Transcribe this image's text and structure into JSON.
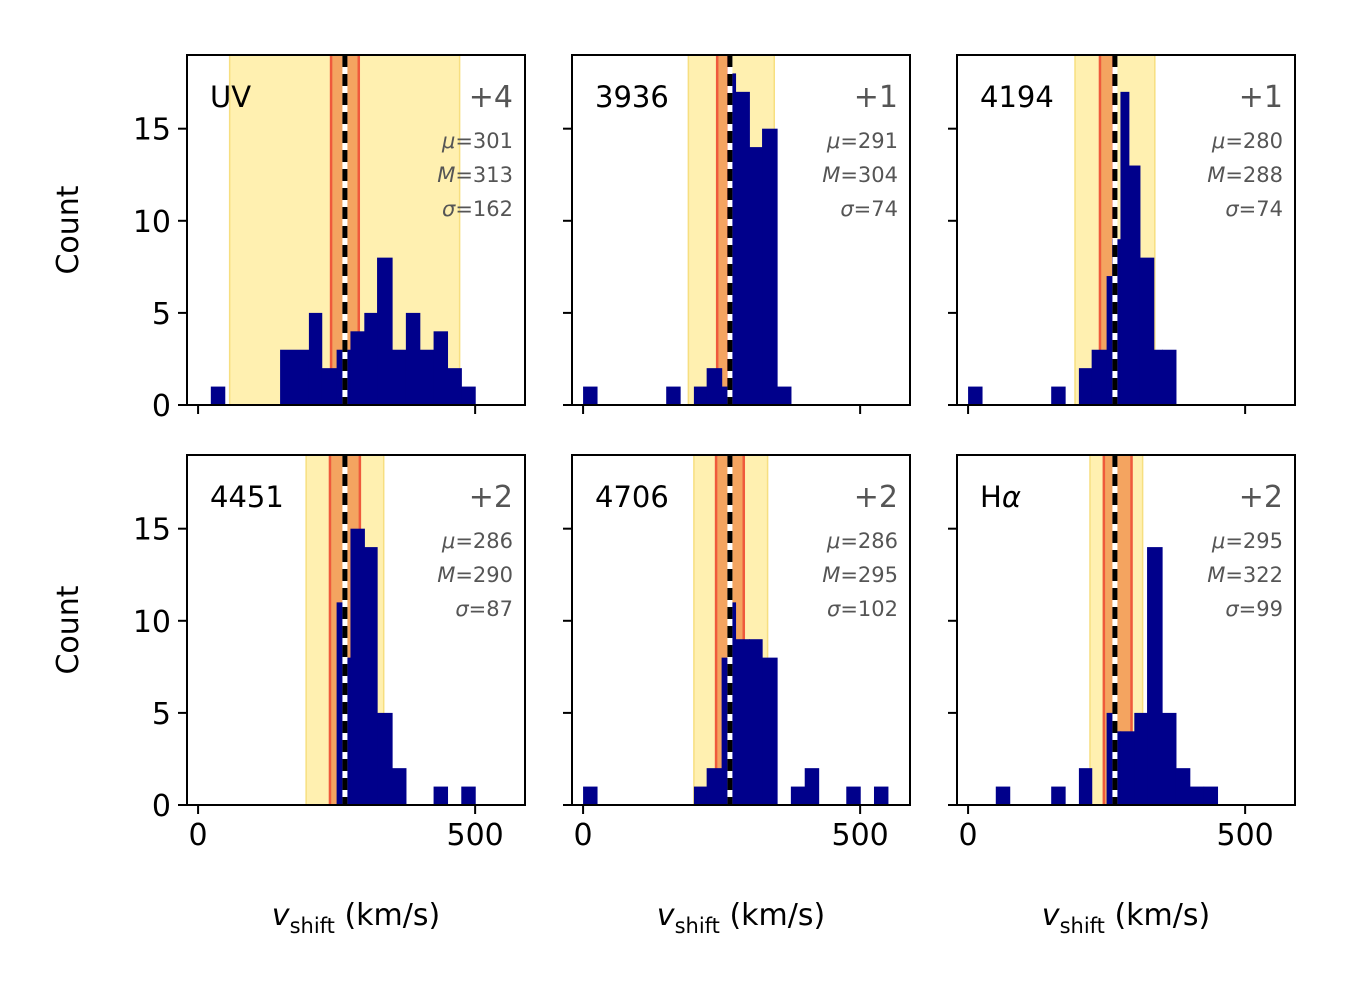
{
  "chart_data": {
    "type": "histogram-grid",
    "x_axis_label": "v_shift (km/s)",
    "x_axis_label_main": "v",
    "x_axis_label_sub": "shift",
    "x_axis_label_unit": " (km/s)",
    "y_axis_label": "Count",
    "x_range": [
      -20,
      590
    ],
    "y_range": [
      0,
      19
    ],
    "x_ticks": [
      0,
      500
    ],
    "y_ticks": [
      0,
      5,
      10,
      15
    ],
    "reference_line": 265,
    "bar_color": "#00008b",
    "band_inner_color": "#f4a460",
    "band_inner_edge_color": "#ef5a3c",
    "band_outer_color": "#fff0b0",
    "band_outer_edge_color": "#f7df80",
    "panels": [
      {
        "name": "UV",
        "name_main": "UV",
        "name_greek": "",
        "offset": "+4",
        "stats": {
          "mu": "301",
          "M": "313",
          "sigma": "162"
        },
        "band_outer": [
          57,
          472
        ],
        "band_inner": [
          240,
          290
        ],
        "bins": [
          {
            "x0": 23,
            "x1": 48,
            "count": 1
          },
          {
            "x0": 148,
            "x1": 200,
            "count": 3
          },
          {
            "x0": 200,
            "x1": 223,
            "count": 5
          },
          {
            "x0": 223,
            "x1": 250,
            "count": 2
          },
          {
            "x0": 250,
            "x1": 275,
            "count": 3
          },
          {
            "x0": 275,
            "x1": 300,
            "count": 4
          },
          {
            "x0": 300,
            "x1": 323,
            "count": 5
          },
          {
            "x0": 323,
            "x1": 350,
            "count": 8
          },
          {
            "x0": 350,
            "x1": 375,
            "count": 3
          },
          {
            "x0": 375,
            "x1": 400,
            "count": 5
          },
          {
            "x0": 400,
            "x1": 425,
            "count": 3
          },
          {
            "x0": 425,
            "x1": 450,
            "count": 4
          },
          {
            "x0": 450,
            "x1": 475,
            "count": 2
          },
          {
            "x0": 475,
            "x1": 500,
            "count": 1
          }
        ]
      },
      {
        "name": "3936",
        "name_main": "3936",
        "name_greek": "",
        "offset": "+1",
        "stats": {
          "mu": "291",
          "M": "304",
          "sigma": "74"
        },
        "band_outer": [
          190,
          345
        ],
        "band_inner": [
          242,
          262
        ],
        "bins": [
          {
            "x0": 0,
            "x1": 25,
            "count": 1
          },
          {
            "x0": 150,
            "x1": 175,
            "count": 1
          },
          {
            "x0": 200,
            "x1": 223,
            "count": 1
          },
          {
            "x0": 223,
            "x1": 250,
            "count": 2
          },
          {
            "x0": 250,
            "x1": 265,
            "count": 1
          },
          {
            "x0": 265,
            "x1": 275,
            "count": 18
          },
          {
            "x0": 275,
            "x1": 300,
            "count": 17
          },
          {
            "x0": 300,
            "x1": 323,
            "count": 14
          },
          {
            "x0": 323,
            "x1": 350,
            "count": 15
          },
          {
            "x0": 350,
            "x1": 375,
            "count": 1
          }
        ]
      },
      {
        "name": "4194",
        "name_main": "4194",
        "name_greek": "",
        "offset": "+1",
        "stats": {
          "mu": "280",
          "M": "288",
          "sigma": "74"
        },
        "band_outer": [
          193,
          337
        ],
        "band_inner": [
          238,
          262
        ],
        "bins": [
          {
            "x0": 0,
            "x1": 25,
            "count": 1
          },
          {
            "x0": 150,
            "x1": 175,
            "count": 1
          },
          {
            "x0": 200,
            "x1": 223,
            "count": 2
          },
          {
            "x0": 223,
            "x1": 250,
            "count": 3
          },
          {
            "x0": 250,
            "x1": 260,
            "count": 7
          },
          {
            "x0": 260,
            "x1": 275,
            "count": 9
          },
          {
            "x0": 275,
            "x1": 290,
            "count": 17
          },
          {
            "x0": 290,
            "x1": 310,
            "count": 13
          },
          {
            "x0": 310,
            "x1": 335,
            "count": 8
          },
          {
            "x0": 335,
            "x1": 350,
            "count": 3
          },
          {
            "x0": 350,
            "x1": 375,
            "count": 3
          }
        ]
      },
      {
        "name": "4451",
        "name_main": "4451",
        "name_greek": "",
        "offset": "+2",
        "stats": {
          "mu": "286",
          "M": "290",
          "sigma": "87"
        },
        "band_outer": [
          195,
          335
        ],
        "band_inner": [
          238,
          292
        ],
        "bins": [
          {
            "x0": 250,
            "x1": 264,
            "count": 11
          },
          {
            "x0": 264,
            "x1": 275,
            "count": 8
          },
          {
            "x0": 275,
            "x1": 300,
            "count": 15
          },
          {
            "x0": 300,
            "x1": 323,
            "count": 14
          },
          {
            "x0": 323,
            "x1": 350,
            "count": 5
          },
          {
            "x0": 350,
            "x1": 375,
            "count": 2
          },
          {
            "x0": 425,
            "x1": 450,
            "count": 1
          },
          {
            "x0": 475,
            "x1": 500,
            "count": 1
          }
        ]
      },
      {
        "name": "4706",
        "name_main": "4706",
        "name_greek": "",
        "offset": "+2",
        "stats": {
          "mu": "286",
          "M": "295",
          "sigma": "102"
        },
        "band_outer": [
          200,
          333
        ],
        "band_inner": [
          240,
          290
        ],
        "bins": [
          {
            "x0": 0,
            "x1": 25,
            "count": 1
          },
          {
            "x0": 200,
            "x1": 223,
            "count": 1
          },
          {
            "x0": 223,
            "x1": 250,
            "count": 2
          },
          {
            "x0": 250,
            "x1": 265,
            "count": 8
          },
          {
            "x0": 265,
            "x1": 275,
            "count": 11
          },
          {
            "x0": 275,
            "x1": 300,
            "count": 9
          },
          {
            "x0": 300,
            "x1": 323,
            "count": 9
          },
          {
            "x0": 323,
            "x1": 350,
            "count": 8
          },
          {
            "x0": 375,
            "x1": 400,
            "count": 1
          },
          {
            "x0": 400,
            "x1": 425,
            "count": 2
          },
          {
            "x0": 475,
            "x1": 500,
            "count": 1
          },
          {
            "x0": 525,
            "x1": 550,
            "count": 1
          }
        ]
      },
      {
        "name": "Hα",
        "name_main": "H",
        "name_greek": "α",
        "offset": "+2",
        "stats": {
          "mu": "295",
          "M": "322",
          "sigma": "99"
        },
        "band_outer": [
          220,
          315
        ],
        "band_inner": [
          245,
          295
        ],
        "bins": [
          {
            "x0": 50,
            "x1": 75,
            "count": 1
          },
          {
            "x0": 150,
            "x1": 175,
            "count": 1
          },
          {
            "x0": 200,
            "x1": 223,
            "count": 2
          },
          {
            "x0": 250,
            "x1": 265,
            "count": 5
          },
          {
            "x0": 265,
            "x1": 275,
            "count": 4
          },
          {
            "x0": 275,
            "x1": 300,
            "count": 4
          },
          {
            "x0": 300,
            "x1": 323,
            "count": 5
          },
          {
            "x0": 323,
            "x1": 350,
            "count": 14
          },
          {
            "x0": 350,
            "x1": 375,
            "count": 5
          },
          {
            "x0": 375,
            "x1": 400,
            "count": 2
          },
          {
            "x0": 400,
            "x1": 425,
            "count": 1
          },
          {
            "x0": 425,
            "x1": 450,
            "count": 1
          }
        ]
      }
    ]
  }
}
